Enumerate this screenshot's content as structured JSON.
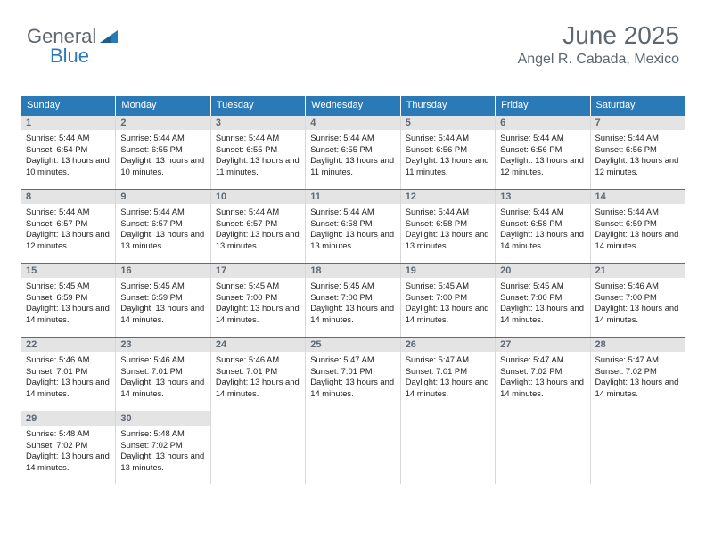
{
  "logo": {
    "text1": "General",
    "text2": "Blue"
  },
  "header": {
    "month": "June 2025",
    "location": "Angel R. Cabada, Mexico"
  },
  "colors": {
    "brand_blue": "#2a7ab8",
    "header_gray": "#5d6770",
    "daynum_bg": "#e4e4e4",
    "cell_border": "#d8d8d8"
  },
  "weekdays": [
    "Sunday",
    "Monday",
    "Tuesday",
    "Wednesday",
    "Thursday",
    "Friday",
    "Saturday"
  ],
  "weeks": [
    [
      {
        "n": "1",
        "sunrise": "5:44 AM",
        "sunset": "6:54 PM",
        "daylight": "13 hours and 10 minutes."
      },
      {
        "n": "2",
        "sunrise": "5:44 AM",
        "sunset": "6:55 PM",
        "daylight": "13 hours and 10 minutes."
      },
      {
        "n": "3",
        "sunrise": "5:44 AM",
        "sunset": "6:55 PM",
        "daylight": "13 hours and 11 minutes."
      },
      {
        "n": "4",
        "sunrise": "5:44 AM",
        "sunset": "6:55 PM",
        "daylight": "13 hours and 11 minutes."
      },
      {
        "n": "5",
        "sunrise": "5:44 AM",
        "sunset": "6:56 PM",
        "daylight": "13 hours and 11 minutes."
      },
      {
        "n": "6",
        "sunrise": "5:44 AM",
        "sunset": "6:56 PM",
        "daylight": "13 hours and 12 minutes."
      },
      {
        "n": "7",
        "sunrise": "5:44 AM",
        "sunset": "6:56 PM",
        "daylight": "13 hours and 12 minutes."
      }
    ],
    [
      {
        "n": "8",
        "sunrise": "5:44 AM",
        "sunset": "6:57 PM",
        "daylight": "13 hours and 12 minutes."
      },
      {
        "n": "9",
        "sunrise": "5:44 AM",
        "sunset": "6:57 PM",
        "daylight": "13 hours and 13 minutes."
      },
      {
        "n": "10",
        "sunrise": "5:44 AM",
        "sunset": "6:57 PM",
        "daylight": "13 hours and 13 minutes."
      },
      {
        "n": "11",
        "sunrise": "5:44 AM",
        "sunset": "6:58 PM",
        "daylight": "13 hours and 13 minutes."
      },
      {
        "n": "12",
        "sunrise": "5:44 AM",
        "sunset": "6:58 PM",
        "daylight": "13 hours and 13 minutes."
      },
      {
        "n": "13",
        "sunrise": "5:44 AM",
        "sunset": "6:58 PM",
        "daylight": "13 hours and 14 minutes."
      },
      {
        "n": "14",
        "sunrise": "5:44 AM",
        "sunset": "6:59 PM",
        "daylight": "13 hours and 14 minutes."
      }
    ],
    [
      {
        "n": "15",
        "sunrise": "5:45 AM",
        "sunset": "6:59 PM",
        "daylight": "13 hours and 14 minutes."
      },
      {
        "n": "16",
        "sunrise": "5:45 AM",
        "sunset": "6:59 PM",
        "daylight": "13 hours and 14 minutes."
      },
      {
        "n": "17",
        "sunrise": "5:45 AM",
        "sunset": "7:00 PM",
        "daylight": "13 hours and 14 minutes."
      },
      {
        "n": "18",
        "sunrise": "5:45 AM",
        "sunset": "7:00 PM",
        "daylight": "13 hours and 14 minutes."
      },
      {
        "n": "19",
        "sunrise": "5:45 AM",
        "sunset": "7:00 PM",
        "daylight": "13 hours and 14 minutes."
      },
      {
        "n": "20",
        "sunrise": "5:45 AM",
        "sunset": "7:00 PM",
        "daylight": "13 hours and 14 minutes."
      },
      {
        "n": "21",
        "sunrise": "5:46 AM",
        "sunset": "7:00 PM",
        "daylight": "13 hours and 14 minutes."
      }
    ],
    [
      {
        "n": "22",
        "sunrise": "5:46 AM",
        "sunset": "7:01 PM",
        "daylight": "13 hours and 14 minutes."
      },
      {
        "n": "23",
        "sunrise": "5:46 AM",
        "sunset": "7:01 PM",
        "daylight": "13 hours and 14 minutes."
      },
      {
        "n": "24",
        "sunrise": "5:46 AM",
        "sunset": "7:01 PM",
        "daylight": "13 hours and 14 minutes."
      },
      {
        "n": "25",
        "sunrise": "5:47 AM",
        "sunset": "7:01 PM",
        "daylight": "13 hours and 14 minutes."
      },
      {
        "n": "26",
        "sunrise": "5:47 AM",
        "sunset": "7:01 PM",
        "daylight": "13 hours and 14 minutes."
      },
      {
        "n": "27",
        "sunrise": "5:47 AM",
        "sunset": "7:02 PM",
        "daylight": "13 hours and 14 minutes."
      },
      {
        "n": "28",
        "sunrise": "5:47 AM",
        "sunset": "7:02 PM",
        "daylight": "13 hours and 14 minutes."
      }
    ],
    [
      {
        "n": "29",
        "sunrise": "5:48 AM",
        "sunset": "7:02 PM",
        "daylight": "13 hours and 14 minutes."
      },
      {
        "n": "30",
        "sunrise": "5:48 AM",
        "sunset": "7:02 PM",
        "daylight": "13 hours and 13 minutes."
      },
      {
        "empty": true
      },
      {
        "empty": true
      },
      {
        "empty": true
      },
      {
        "empty": true
      },
      {
        "empty": true
      }
    ]
  ],
  "labels": {
    "sunrise": "Sunrise: ",
    "sunset": "Sunset: ",
    "daylight": "Daylight: "
  }
}
